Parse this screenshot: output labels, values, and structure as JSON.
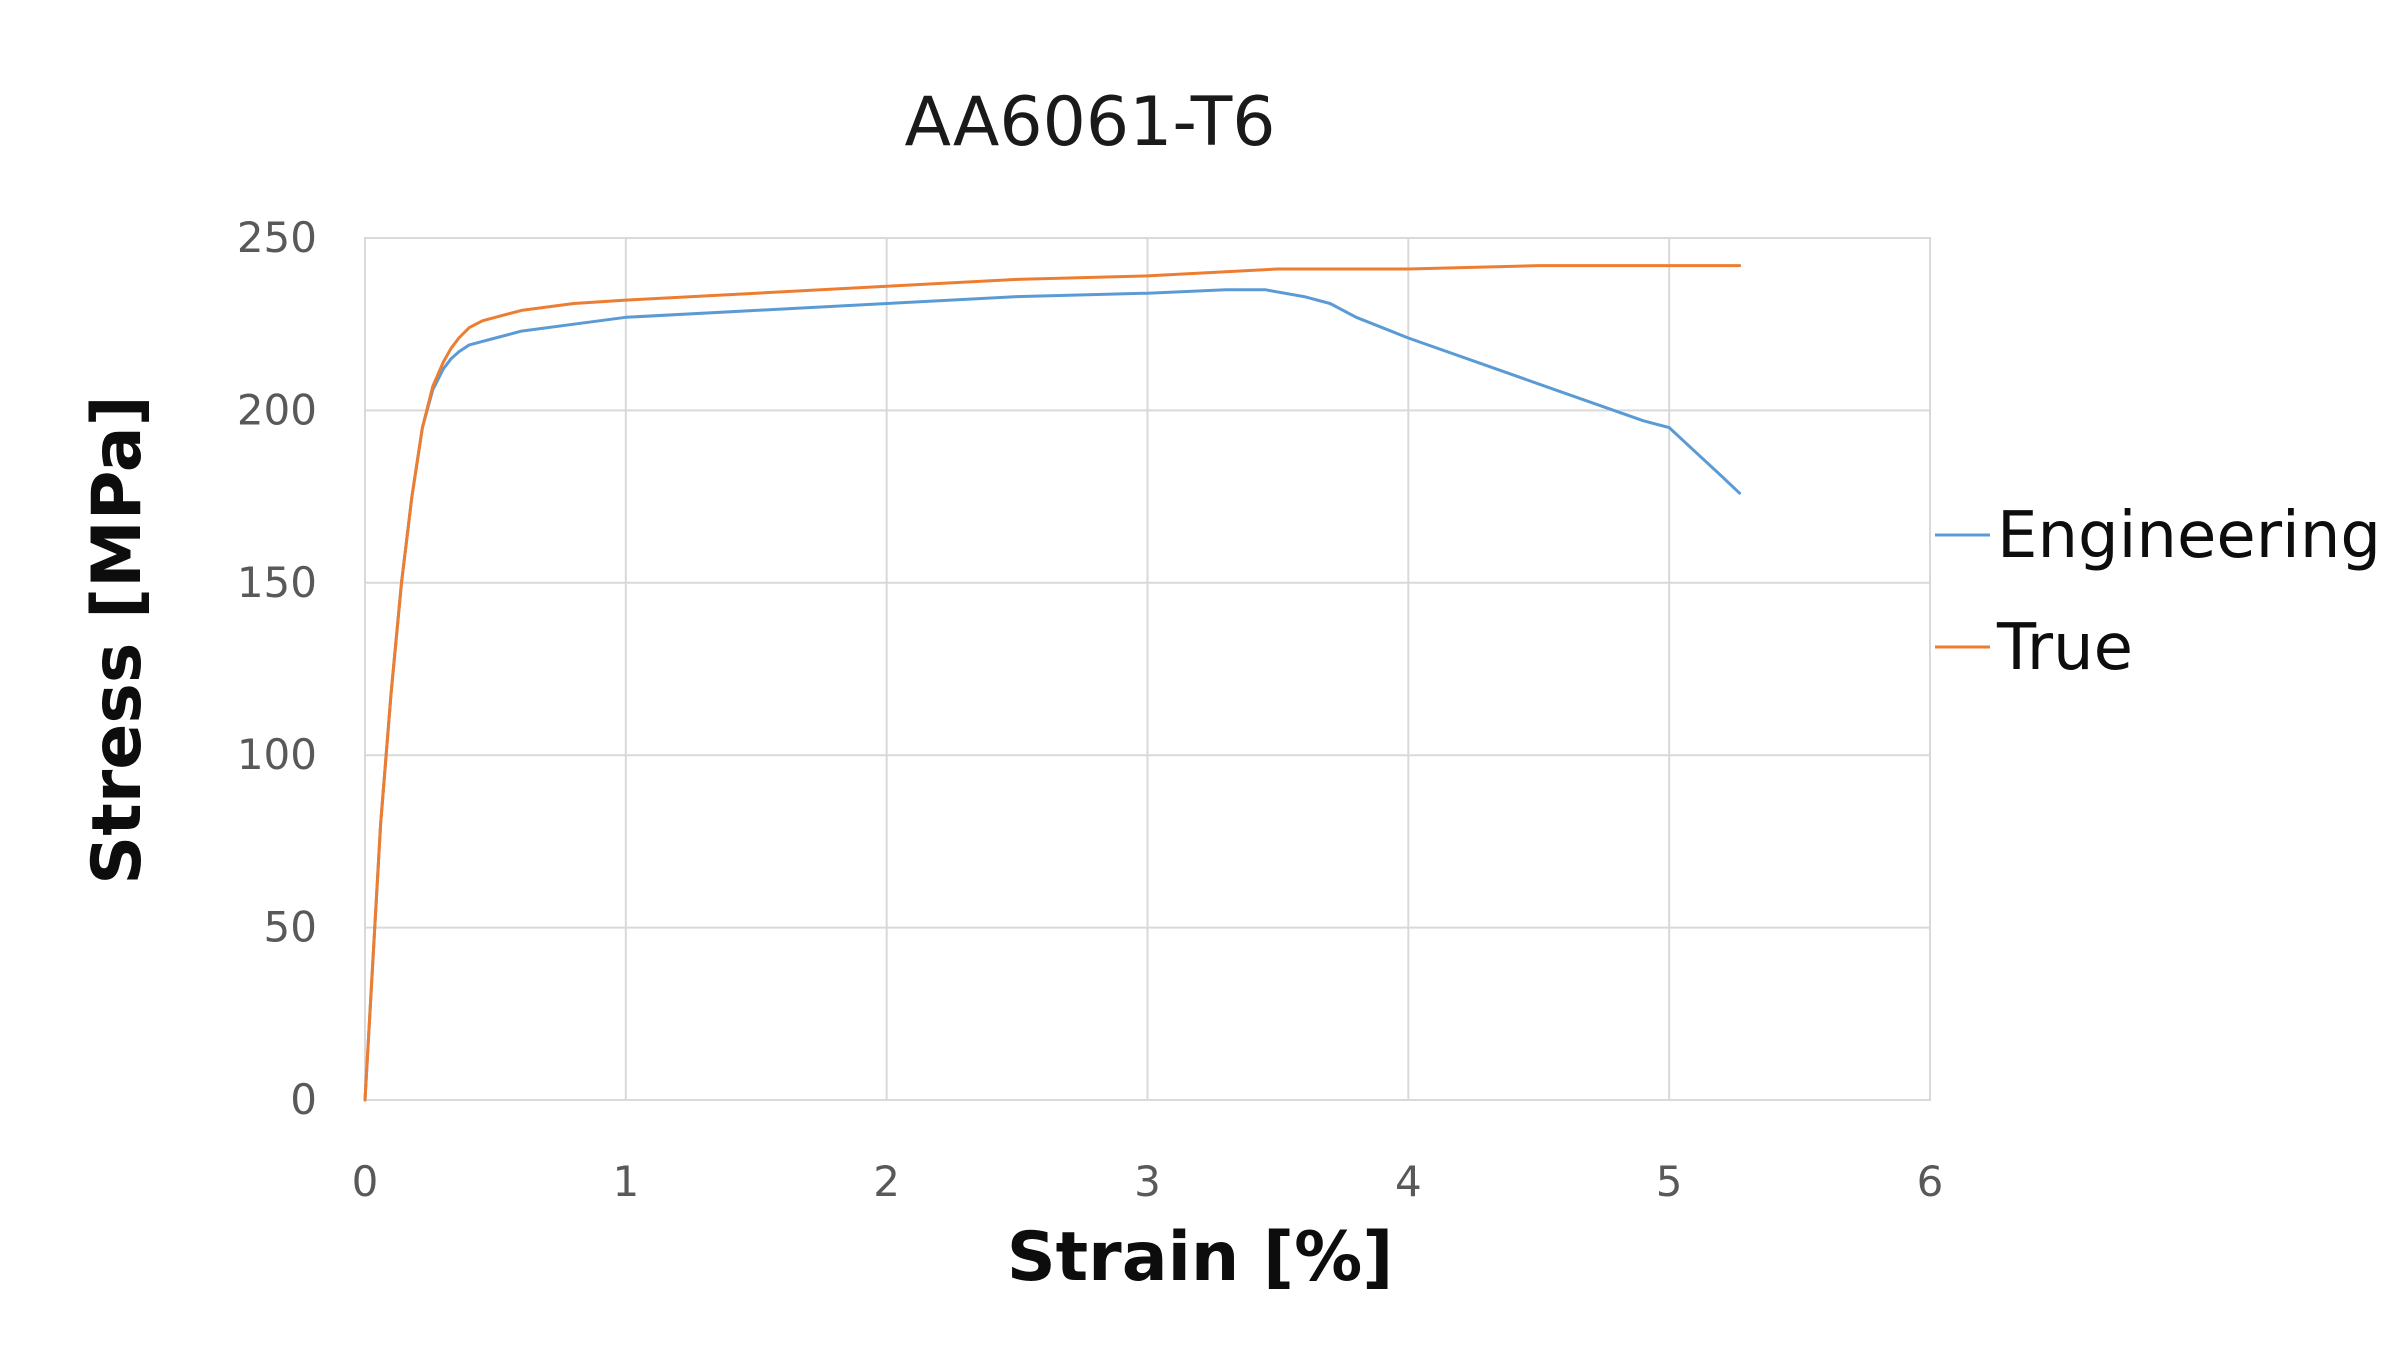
{
  "chart_data": {
    "type": "line",
    "title": "AA6061-T6",
    "xlabel": "Strain [%]",
    "ylabel": "Stress [MPa]",
    "xlim": [
      0,
      6
    ],
    "ylim": [
      0,
      250
    ],
    "x_ticks": [
      "0",
      "1",
      "2",
      "3",
      "4",
      "5",
      "6"
    ],
    "y_ticks": [
      "0",
      "50",
      "100",
      "150",
      "200",
      "250"
    ],
    "grid": true,
    "legend_position": "right",
    "series": [
      {
        "name": "Engineering",
        "color": "#5b9bd5",
        "x": [
          0,
          0.03,
          0.06,
          0.1,
          0.14,
          0.18,
          0.22,
          0.26,
          0.3,
          0.33,
          0.36,
          0.4,
          0.45,
          0.5,
          0.6,
          0.8,
          1.0,
          1.5,
          2.0,
          2.5,
          3.0,
          3.3,
          3.45,
          3.6,
          3.7,
          3.8,
          4.0,
          4.3,
          4.6,
          4.9,
          5.0,
          5.1,
          5.2,
          5.27
        ],
        "y": [
          0,
          40,
          80,
          118,
          150,
          175,
          195,
          206,
          212,
          215,
          217,
          219,
          220,
          221,
          223,
          225,
          227,
          229,
          231,
          233,
          234,
          235,
          235,
          233,
          231,
          227,
          221,
          213,
          205,
          197,
          195,
          188,
          181,
          176
        ]
      },
      {
        "name": "True",
        "color": "#ed7d31",
        "x": [
          0,
          0.03,
          0.06,
          0.1,
          0.14,
          0.18,
          0.22,
          0.26,
          0.3,
          0.33,
          0.36,
          0.4,
          0.45,
          0.5,
          0.6,
          0.8,
          1.0,
          1.5,
          2.0,
          2.5,
          3.0,
          3.5,
          4.0,
          4.5,
          5.0,
          5.27
        ],
        "y": [
          0,
          40,
          80,
          118,
          150,
          175,
          195,
          207,
          214,
          218,
          221,
          224,
          226,
          227,
          229,
          231,
          232,
          234,
          236,
          238,
          239,
          241,
          241,
          242,
          242,
          242
        ]
      }
    ]
  }
}
